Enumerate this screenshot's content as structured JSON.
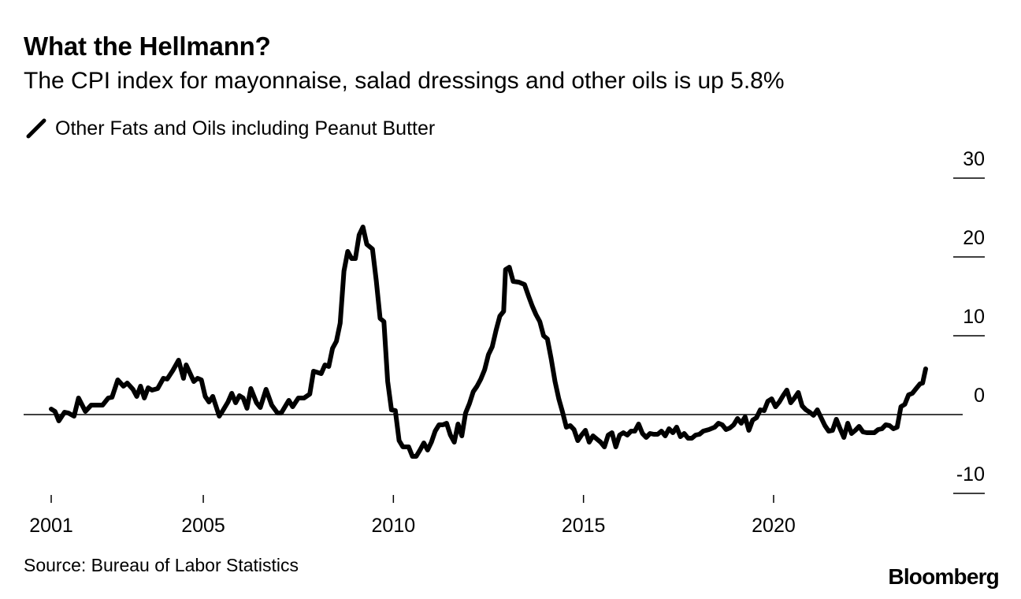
{
  "header": {
    "title": "What the Hellmann?",
    "subtitle": "The CPI index for mayonnaise, salad dressings and other oils is up 5.8%"
  },
  "legend": {
    "label": "Other Fats and Oils including Peanut Butter",
    "icon": "line-swatch-icon"
  },
  "footer": {
    "source": "Source: Bureau of Labor Statistics",
    "brand": "Bloomberg"
  },
  "colors": {
    "line": "#000000",
    "axis": "#000000",
    "background": "#ffffff"
  },
  "chart_data": {
    "type": "line",
    "title": "What the Hellmann?",
    "subtitle": "The CPI index for mayonnaise, salad dressings and other oils is up 5.8%",
    "xlabel": "",
    "ylabel": "",
    "xlim": [
      2001.0,
      2024.0
    ],
    "ylim": [
      -10,
      30
    ],
    "x_ticks": [
      2001,
      2005,
      2010,
      2015,
      2020
    ],
    "x_tick_labels": [
      "2001",
      "2005",
      "2010",
      "2015",
      "2020"
    ],
    "y_ticks": [
      30,
      20,
      10,
      0,
      -10
    ],
    "y_tick_labels": [
      "30",
      "20",
      "10",
      "0",
      "-10"
    ],
    "legend_position": "top-left",
    "grid": false,
    "series": [
      {
        "name": "Other Fats and Oils including Peanut Butter",
        "points": [
          [
            2001.0,
            0.7
          ],
          [
            2001.1,
            0.4
          ],
          [
            2001.2,
            -0.8
          ],
          [
            2001.35,
            0.3
          ],
          [
            2001.45,
            0.2
          ],
          [
            2001.6,
            -0.2
          ],
          [
            2001.72,
            2.1
          ],
          [
            2001.9,
            0.4
          ],
          [
            2002.05,
            1.2
          ],
          [
            2002.2,
            1.2
          ],
          [
            2002.35,
            1.2
          ],
          [
            2002.5,
            2.1
          ],
          [
            2002.6,
            2.2
          ],
          [
            2002.75,
            4.4
          ],
          [
            2002.9,
            3.6
          ],
          [
            2003.0,
            4.0
          ],
          [
            2003.15,
            3.2
          ],
          [
            2003.25,
            2.3
          ],
          [
            2003.35,
            3.6
          ],
          [
            2003.45,
            2.1
          ],
          [
            2003.55,
            3.4
          ],
          [
            2003.65,
            3.1
          ],
          [
            2003.8,
            3.3
          ],
          [
            2003.95,
            4.6
          ],
          [
            2004.05,
            4.5
          ],
          [
            2004.2,
            5.6
          ],
          [
            2004.35,
            6.9
          ],
          [
            2004.48,
            4.6
          ],
          [
            2004.55,
            6.3
          ],
          [
            2004.75,
            4.2
          ],
          [
            2004.85,
            4.6
          ],
          [
            2004.95,
            4.4
          ],
          [
            2005.05,
            2.3
          ],
          [
            2005.15,
            1.6
          ],
          [
            2005.25,
            2.3
          ],
          [
            2005.42,
            -0.2
          ],
          [
            2005.5,
            0.4
          ],
          [
            2005.65,
            1.6
          ],
          [
            2005.75,
            2.7
          ],
          [
            2005.85,
            1.5
          ],
          [
            2005.95,
            2.4
          ],
          [
            2006.05,
            2.1
          ],
          [
            2006.15,
            0.8
          ],
          [
            2006.25,
            3.3
          ],
          [
            2006.4,
            1.5
          ],
          [
            2006.5,
            0.9
          ],
          [
            2006.65,
            3.2
          ],
          [
            2006.8,
            1.2
          ],
          [
            2006.95,
            0.2
          ],
          [
            2007.05,
            0.2
          ],
          [
            2007.15,
            1.0
          ],
          [
            2007.25,
            1.8
          ],
          [
            2007.35,
            1.0
          ],
          [
            2007.5,
            2.1
          ],
          [
            2007.65,
            2.1
          ],
          [
            2007.8,
            2.6
          ],
          [
            2007.9,
            5.5
          ],
          [
            2008.1,
            5.2
          ],
          [
            2008.2,
            6.3
          ],
          [
            2008.3,
            6.1
          ],
          [
            2008.4,
            8.4
          ],
          [
            2008.5,
            9.3
          ],
          [
            2008.6,
            11.6
          ],
          [
            2008.7,
            18.2
          ],
          [
            2008.8,
            20.7
          ],
          [
            2008.9,
            19.8
          ],
          [
            2009.0,
            19.8
          ],
          [
            2009.1,
            22.8
          ],
          [
            2009.2,
            23.8
          ],
          [
            2009.3,
            21.6
          ],
          [
            2009.45,
            21.0
          ],
          [
            2009.55,
            17.0
          ],
          [
            2009.65,
            12.2
          ],
          [
            2009.75,
            11.8
          ],
          [
            2009.85,
            4.2
          ],
          [
            2009.95,
            0.6
          ],
          [
            2010.05,
            0.5
          ],
          [
            2010.15,
            -3.3
          ],
          [
            2010.25,
            -4.1
          ],
          [
            2010.4,
            -4.1
          ],
          [
            2010.5,
            -5.3
          ],
          [
            2010.6,
            -5.3
          ],
          [
            2010.7,
            -4.5
          ],
          [
            2010.8,
            -3.6
          ],
          [
            2010.9,
            -4.5
          ],
          [
            2011.0,
            -3.5
          ],
          [
            2011.1,
            -2.1
          ],
          [
            2011.2,
            -1.3
          ],
          [
            2011.3,
            -1.3
          ],
          [
            2011.4,
            -1.1
          ],
          [
            2011.5,
            -2.6
          ],
          [
            2011.6,
            -3.5
          ],
          [
            2011.7,
            -1.2
          ],
          [
            2011.8,
            -2.7
          ],
          [
            2011.9,
            0.2
          ],
          [
            2012.0,
            1.4
          ],
          [
            2012.1,
            2.9
          ],
          [
            2012.2,
            3.6
          ],
          [
            2012.3,
            4.5
          ],
          [
            2012.4,
            5.7
          ],
          [
            2012.5,
            7.6
          ],
          [
            2012.6,
            8.6
          ],
          [
            2012.7,
            10.7
          ],
          [
            2012.8,
            12.5
          ],
          [
            2012.9,
            13.1
          ],
          [
            2012.95,
            18.4
          ],
          [
            2013.05,
            18.7
          ],
          [
            2013.15,
            16.9
          ],
          [
            2013.3,
            16.8
          ],
          [
            2013.45,
            16.5
          ],
          [
            2013.55,
            15.1
          ],
          [
            2013.65,
            13.8
          ],
          [
            2013.75,
            12.7
          ],
          [
            2013.85,
            11.8
          ],
          [
            2013.95,
            10.0
          ],
          [
            2014.05,
            9.6
          ],
          [
            2014.15,
            7.1
          ],
          [
            2014.25,
            4.2
          ],
          [
            2014.35,
            2.0
          ],
          [
            2014.45,
            0.3
          ],
          [
            2014.55,
            -1.6
          ],
          [
            2014.65,
            -1.4
          ],
          [
            2014.75,
            -1.9
          ],
          [
            2014.85,
            -3.3
          ],
          [
            2014.95,
            -2.6
          ],
          [
            2015.05,
            -2.0
          ],
          [
            2015.15,
            -3.5
          ],
          [
            2015.25,
            -2.7
          ],
          [
            2015.35,
            -3.1
          ],
          [
            2015.45,
            -3.5
          ],
          [
            2015.55,
            -4.1
          ],
          [
            2015.65,
            -2.6
          ],
          [
            2015.75,
            -2.3
          ],
          [
            2015.85,
            -4.1
          ],
          [
            2015.95,
            -2.6
          ],
          [
            2016.05,
            -2.3
          ],
          [
            2016.15,
            -2.6
          ],
          [
            2016.25,
            -2.1
          ],
          [
            2016.35,
            -2.1
          ],
          [
            2016.45,
            -1.2
          ],
          [
            2016.55,
            -2.4
          ],
          [
            2016.65,
            -2.9
          ],
          [
            2016.75,
            -2.4
          ],
          [
            2016.85,
            -2.5
          ],
          [
            2016.95,
            -2.5
          ],
          [
            2017.05,
            -2.1
          ],
          [
            2017.15,
            -2.7
          ],
          [
            2017.25,
            -1.8
          ],
          [
            2017.35,
            -2.3
          ],
          [
            2017.45,
            -1.6
          ],
          [
            2017.55,
            -2.8
          ],
          [
            2017.65,
            -2.4
          ],
          [
            2017.75,
            -3.0
          ],
          [
            2017.85,
            -3.0
          ],
          [
            2017.95,
            -2.6
          ],
          [
            2018.05,
            -2.5
          ],
          [
            2018.15,
            -2.1
          ],
          [
            2018.3,
            -1.9
          ],
          [
            2018.45,
            -1.6
          ],
          [
            2018.55,
            -1.1
          ],
          [
            2018.65,
            -1.3
          ],
          [
            2018.75,
            -1.9
          ],
          [
            2018.85,
            -1.7
          ],
          [
            2018.95,
            -1.3
          ],
          [
            2019.05,
            -0.5
          ],
          [
            2019.15,
            -1.1
          ],
          [
            2019.25,
            -0.3
          ],
          [
            2019.35,
            -2.0
          ],
          [
            2019.45,
            -0.7
          ],
          [
            2019.55,
            -0.4
          ],
          [
            2019.65,
            0.6
          ],
          [
            2019.75,
            0.5
          ],
          [
            2019.85,
            1.7
          ],
          [
            2019.95,
            2.0
          ],
          [
            2020.05,
            1.0
          ],
          [
            2020.15,
            1.6
          ],
          [
            2020.25,
            2.4
          ],
          [
            2020.35,
            3.1
          ],
          [
            2020.45,
            1.5
          ],
          [
            2020.55,
            2.1
          ],
          [
            2020.65,
            2.8
          ],
          [
            2020.75,
            1.1
          ],
          [
            2020.85,
            0.6
          ],
          [
            2020.95,
            0.3
          ],
          [
            2021.05,
            -0.1
          ],
          [
            2021.15,
            0.6
          ],
          [
            2021.25,
            -0.4
          ],
          [
            2021.35,
            -1.4
          ],
          [
            2021.45,
            -2.1
          ],
          [
            2021.55,
            -2.0
          ],
          [
            2021.65,
            -0.6
          ],
          [
            2021.75,
            -1.8
          ],
          [
            2021.85,
            -2.9
          ],
          [
            2021.95,
            -1.1
          ],
          [
            2022.05,
            -2.4
          ],
          [
            2022.15,
            -2.0
          ],
          [
            2022.25,
            -1.5
          ],
          [
            2022.35,
            -2.2
          ],
          [
            2022.45,
            -2.3
          ],
          [
            2022.55,
            -2.3
          ],
          [
            2022.65,
            -2.3
          ],
          [
            2022.75,
            -1.9
          ],
          [
            2022.85,
            -1.8
          ],
          [
            2022.95,
            -1.3
          ],
          [
            2023.05,
            -1.4
          ],
          [
            2023.15,
            -1.8
          ],
          [
            2023.25,
            -1.6
          ],
          [
            2023.35,
            1.0
          ],
          [
            2023.45,
            1.3
          ],
          [
            2023.55,
            2.5
          ],
          [
            2023.65,
            2.7
          ],
          [
            2023.75,
            3.3
          ],
          [
            2023.85,
            3.9
          ],
          [
            2023.92,
            4.0
          ],
          [
            2024.0,
            5.8
          ]
        ]
      }
    ]
  }
}
